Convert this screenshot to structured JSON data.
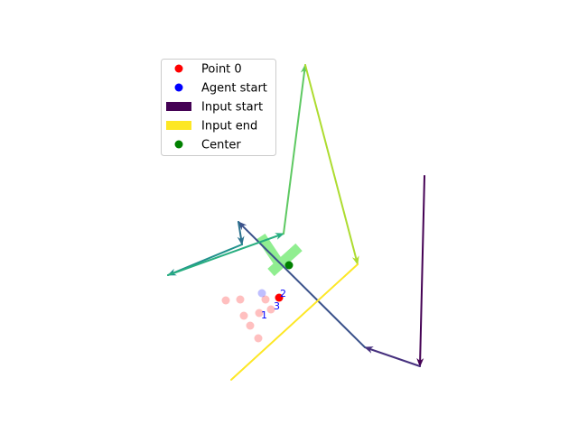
{
  "chart_data": {
    "type": "scatter",
    "title": "",
    "xlabel": "",
    "ylabel": "",
    "axes_visible": false,
    "xlim": [
      0,
      640
    ],
    "ylim": [
      480,
      0
    ],
    "legend": {
      "placement": "top-left",
      "entries": [
        {
          "label": "Point 0",
          "marker": "dot",
          "color": "#ff0000"
        },
        {
          "label": "Agent start",
          "marker": "dot",
          "color": "#0000ff"
        },
        {
          "label": "Input start",
          "marker": "patch",
          "color": "#440154"
        },
        {
          "label": "Input end",
          "marker": "patch",
          "color": "#fde725"
        },
        {
          "label": "Center",
          "marker": "dot",
          "color": "#008000"
        }
      ]
    },
    "center": {
      "x": 320,
      "y": 186,
      "color": "#008000"
    },
    "body_color": "#90ee90",
    "body": [
      {
        "x1": 300,
        "y1": 178,
        "x2": 331,
        "y2": 206
      },
      {
        "x1": 309,
        "y1": 188,
        "x2": 289,
        "y2": 218
      }
    ],
    "red_points": [
      {
        "x": 309,
        "y": 150,
        "opacity": 1.0
      },
      {
        "x": 294,
        "y": 148,
        "opacity": 0.25
      },
      {
        "x": 287,
        "y": 133,
        "opacity": 0.25
      },
      {
        "x": 277,
        "y": 119,
        "opacity": 0.25
      },
      {
        "x": 286,
        "y": 105,
        "opacity": 0.25
      },
      {
        "x": 270,
        "y": 130,
        "opacity": 0.25
      },
      {
        "x": 266,
        "y": 148,
        "opacity": 0.25
      },
      {
        "x": 250,
        "y": 147,
        "opacity": 0.25
      },
      {
        "x": 300,
        "y": 137,
        "opacity": 0.25
      }
    ],
    "blue_points": [
      {
        "x": 290,
        "y": 155,
        "opacity": 0.25
      }
    ],
    "point_labels": [
      {
        "text": "2",
        "x": 309,
        "y": 150,
        "color": "#0000ff"
      },
      {
        "text": "3",
        "x": 302,
        "y": 136,
        "color": "#0000ff"
      },
      {
        "text": "1",
        "x": 288,
        "y": 126,
        "color": "#0000ff"
      }
    ],
    "path": [
      {
        "x": 470,
        "y": 285
      },
      {
        "x": 465,
        "y": 74
      },
      {
        "x": 404,
        "y": 95
      },
      {
        "x": 264,
        "y": 234
      },
      {
        "x": 268,
        "y": 209
      },
      {
        "x": 186,
        "y": 175
      },
      {
        "x": 314,
        "y": 221
      },
      {
        "x": 338,
        "y": 408
      },
      {
        "x": 396,
        "y": 187
      },
      {
        "x": 256,
        "y": 59
      }
    ],
    "segment_colors": [
      "#440154",
      "#46307e",
      "#3b528b",
      "#2c728e",
      "#21918c",
      "#28ae80",
      "#5ec962",
      "#addc30",
      "#fde725"
    ],
    "colormap": "viridis"
  }
}
